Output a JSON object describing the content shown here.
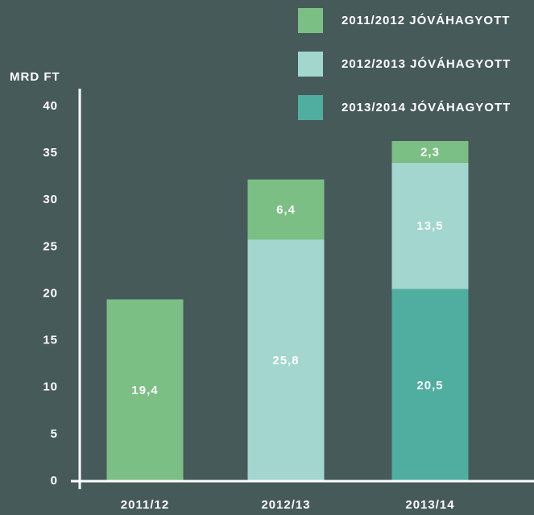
{
  "chart_data": {
    "type": "stacked_bar",
    "y_label": "MRD FT",
    "categories": [
      "2011/12",
      "2012/13",
      "2013/14"
    ],
    "series": [
      {
        "name": "2011/2012 JÓVÁHAGYOTT",
        "color": "#7bbf84",
        "values": [
          19.4,
          6.4,
          2.3
        ],
        "value_labels": [
          "19,4",
          "6,4",
          "2,3"
        ]
      },
      {
        "name": "2012/2013 JÓVÁHAGYOTT",
        "color": "#a2d6ce",
        "values": [
          null,
          25.8,
          13.5
        ],
        "value_labels": [
          null,
          "25,8",
          "13,5"
        ]
      },
      {
        "name": "2013/2014 JÓVÁHAGYOTT",
        "color": "#4fae9f",
        "values": [
          null,
          null,
          20.5
        ],
        "value_labels": [
          null,
          null,
          "20,5"
        ]
      }
    ],
    "ylim": [
      0,
      40
    ],
    "yticks": [
      0,
      5,
      10,
      15,
      20,
      25,
      30,
      35,
      40
    ],
    "grid": false
  }
}
